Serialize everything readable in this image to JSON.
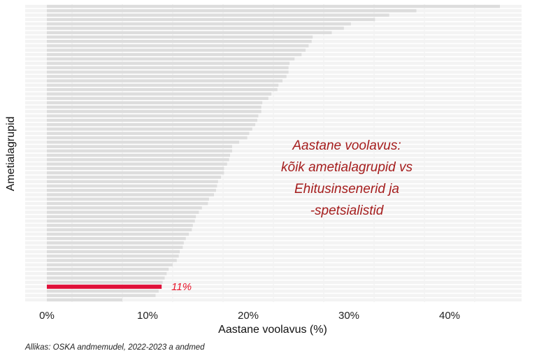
{
  "chart_data": {
    "type": "bar",
    "orientation": "horizontal",
    "xlabel": "Aastane voolavus (%)",
    "ylabel": "Ametialagrupid",
    "xlim": [
      0,
      47
    ],
    "xticks": [
      0,
      10,
      20,
      30,
      40
    ],
    "xtick_labels": [
      "0%",
      "10%",
      "20%",
      "30%",
      "40%"
    ],
    "grid": "vertical",
    "annotation_lines": [
      "Aastane voolavus:",
      "kõik ametialagrupid vs",
      "Ehitusinsenerid ja",
      "-spetsialistid"
    ],
    "highlight": {
      "value": 11.4,
      "label": "11%",
      "color": "#e0113a"
    },
    "bar_color": "#dddddd",
    "values": [
      45.0,
      36.7,
      34.0,
      32.6,
      30.2,
      29.5,
      28.3,
      26.4,
      26.3,
      26.0,
      25.7,
      25.3,
      24.6,
      24.1,
      24.0,
      24.0,
      23.8,
      23.4,
      23.0,
      22.9,
      22.3,
      22.0,
      21.4,
      21.3,
      21.3,
      21.0,
      20.9,
      20.7,
      20.4,
      20.1,
      19.9,
      19.1,
      18.4,
      18.4,
      18.2,
      18.1,
      17.9,
      17.6,
      17.6,
      17.3,
      17.0,
      16.9,
      16.8,
      16.6,
      16.1,
      16.0,
      15.4,
      15.1,
      14.8,
      14.7,
      14.5,
      14.4,
      14.1,
      13.8,
      13.6,
      13.5,
      13.2,
      13.1,
      12.9,
      12.5,
      12.1,
      11.9,
      11.7,
      11.5,
      11.4,
      11.1,
      10.8,
      7.5
    ]
  },
  "caption": "Allikas: OSKA andmemudel, 2022-2023 a andmed"
}
